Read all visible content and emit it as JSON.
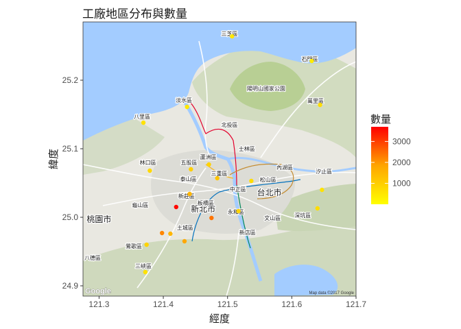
{
  "chart_data": {
    "type": "scatter",
    "title": "工廠地區分布與數量",
    "xlabel": "經度",
    "ylabel": "緯度",
    "xlim": [
      121.275,
      121.7
    ],
    "ylim": [
      24.885,
      25.285
    ],
    "x_ticks": [
      {
        "value": 121.3,
        "label": "121.3"
      },
      {
        "value": 121.4,
        "label": "121.4"
      },
      {
        "value": 121.5,
        "label": "121.5"
      },
      {
        "value": 121.6,
        "label": "121.6"
      },
      {
        "value": 121.7,
        "label": "121.7"
      }
    ],
    "y_ticks": [
      {
        "value": 24.9,
        "label": "24.9"
      },
      {
        "value": 25.0,
        "label": "25.0"
      },
      {
        "value": 25.1,
        "label": "25.1"
      },
      {
        "value": 25.2,
        "label": "25.2"
      }
    ],
    "grid": false,
    "legend": {
      "title": "數量",
      "placement": "right",
      "min": 0,
      "max": 3700,
      "ticks": [
        {
          "value": 1000,
          "label": "1000"
        },
        {
          "value": 2000,
          "label": "2000"
        },
        {
          "value": 3000,
          "label": "3000"
        }
      ],
      "colors": [
        "#FFFF00",
        "#FFA500",
        "#FF0000"
      ]
    },
    "points": [
      {
        "lon": 121.507,
        "lat": 25.264,
        "value": 500
      },
      {
        "lon": 121.631,
        "lat": 25.228,
        "value": 400
      },
      {
        "lon": 121.437,
        "lat": 25.161,
        "value": 500
      },
      {
        "lon": 121.644,
        "lat": 25.164,
        "value": 700
      },
      {
        "lon": 121.369,
        "lat": 25.138,
        "value": 600
      },
      {
        "lon": 121.443,
        "lat": 25.07,
        "value": 1000
      },
      {
        "lon": 121.471,
        "lat": 25.077,
        "value": 900
      },
      {
        "lon": 121.379,
        "lat": 25.068,
        "value": 800
      },
      {
        "lon": 121.484,
        "lat": 25.057,
        "value": 1200
      },
      {
        "lon": 121.441,
        "lat": 25.034,
        "value": 1500
      },
      {
        "lon": 121.537,
        "lat": 25.053,
        "value": 700
      },
      {
        "lon": 121.647,
        "lat": 25.04,
        "value": 600
      },
      {
        "lon": 121.42,
        "lat": 25.015,
        "value": 3600
      },
      {
        "lon": 121.475,
        "lat": 24.999,
        "value": 2400
      },
      {
        "lon": 121.517,
        "lat": 25.009,
        "value": 900
      },
      {
        "lon": 121.64,
        "lat": 25.013,
        "value": 700
      },
      {
        "lon": 121.398,
        "lat": 24.977,
        "value": 2200
      },
      {
        "lon": 121.411,
        "lat": 24.976,
        "value": 1500
      },
      {
        "lon": 121.433,
        "lat": 24.965,
        "value": 1800
      },
      {
        "lon": 121.374,
        "lat": 24.96,
        "value": 900
      },
      {
        "lon": 121.372,
        "lat": 24.92,
        "value": 600
      }
    ]
  },
  "basemap": {
    "labels": [
      {
        "text": "三芝區",
        "lon": 121.503,
        "lat": 25.265,
        "size": 8
      },
      {
        "text": "石門區",
        "lon": 121.628,
        "lat": 25.228,
        "size": 8
      },
      {
        "text": "陽明山國家公園",
        "lon": 121.56,
        "lat": 25.185,
        "size": 8
      },
      {
        "text": "淡水區",
        "lon": 121.432,
        "lat": 25.168,
        "size": 8
      },
      {
        "text": "萬里區",
        "lon": 121.637,
        "lat": 25.167,
        "size": 8
      },
      {
        "text": "八里區",
        "lon": 121.367,
        "lat": 25.144,
        "size": 8
      },
      {
        "text": "北投區",
        "lon": 121.503,
        "lat": 25.132,
        "size": 8
      },
      {
        "text": "士林區",
        "lon": 121.53,
        "lat": 25.097,
        "size": 8
      },
      {
        "text": "蘆洲區",
        "lon": 121.47,
        "lat": 25.085,
        "size": 8
      },
      {
        "text": "五股區",
        "lon": 121.44,
        "lat": 25.077,
        "size": 8
      },
      {
        "text": "內湖區",
        "lon": 121.589,
        "lat": 25.07,
        "size": 8
      },
      {
        "text": "林口區",
        "lon": 121.376,
        "lat": 25.077,
        "size": 8
      },
      {
        "text": "泰山區",
        "lon": 121.439,
        "lat": 25.053,
        "size": 8
      },
      {
        "text": "三重區",
        "lon": 121.487,
        "lat": 25.061,
        "size": 8
      },
      {
        "text": "中正區",
        "lon": 121.516,
        "lat": 25.038,
        "size": 8
      },
      {
        "text": "松山區",
        "lon": 121.563,
        "lat": 25.052,
        "size": 8
      },
      {
        "text": "汐止區",
        "lon": 121.65,
        "lat": 25.064,
        "size": 8
      },
      {
        "text": "台北市",
        "lon": 121.565,
        "lat": 25.032,
        "size": 12
      },
      {
        "text": "新莊區",
        "lon": 121.436,
        "lat": 25.028,
        "size": 8
      },
      {
        "text": "龜山區",
        "lon": 121.364,
        "lat": 25.015,
        "size": 8
      },
      {
        "text": "新北市",
        "lon": 121.462,
        "lat": 25.008,
        "size": 12
      },
      {
        "text": "板橋區",
        "lon": 121.466,
        "lat": 25.018,
        "size": 8
      },
      {
        "text": "永和區",
        "lon": 121.513,
        "lat": 25.005,
        "size": 8
      },
      {
        "text": "深坑區",
        "lon": 121.617,
        "lat": 25.0,
        "size": 8
      },
      {
        "text": "桃園市",
        "lon": 121.3,
        "lat": 24.993,
        "size": 12
      },
      {
        "text": "文山區",
        "lon": 121.57,
        "lat": 24.996,
        "size": 8
      },
      {
        "text": "土城區",
        "lon": 121.434,
        "lat": 24.982,
        "size": 8
      },
      {
        "text": "新店區",
        "lon": 121.531,
        "lat": 24.975,
        "size": 8
      },
      {
        "text": "鶯歌區",
        "lon": 121.354,
        "lat": 24.955,
        "size": 8
      },
      {
        "text": "八德區",
        "lon": 121.29,
        "lat": 24.938,
        "size": 8
      },
      {
        "text": "三峽區",
        "lon": 121.369,
        "lat": 24.926,
        "size": 8
      }
    ],
    "attribution": "Map data ©2017 Google",
    "logo": "Google"
  }
}
